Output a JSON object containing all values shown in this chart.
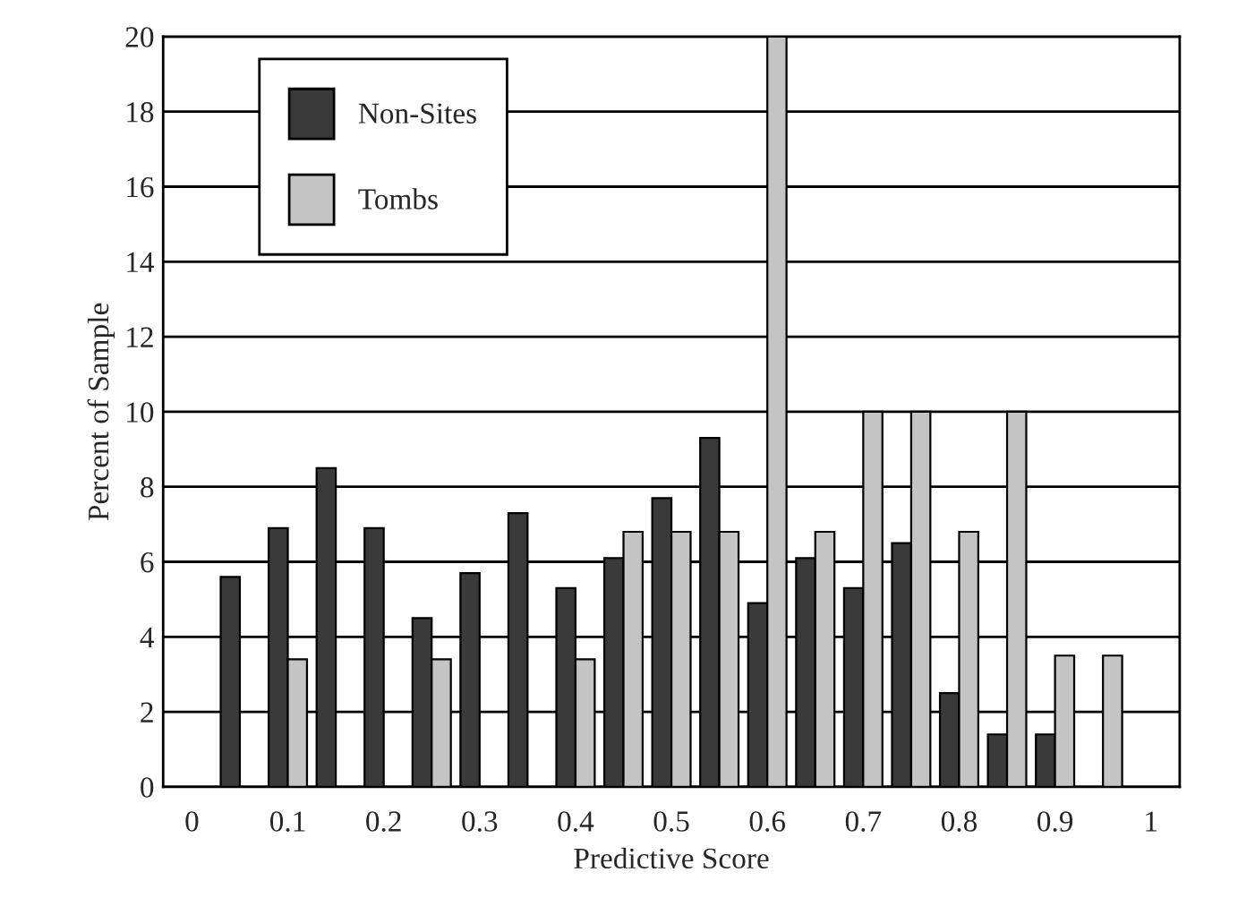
{
  "chart_data": {
    "type": "bar",
    "xlabel": "Predictive Score",
    "ylabel": "Percent of Sample",
    "x": [
      0.05,
      0.1,
      0.15,
      0.2,
      0.25,
      0.3,
      0.35,
      0.4,
      0.45,
      0.5,
      0.55,
      0.6,
      0.65,
      0.7,
      0.75,
      0.8,
      0.85,
      0.9,
      0.95
    ],
    "series": [
      {
        "name": "Non-Sites",
        "color": "#3a3a3a",
        "values": [
          5.6,
          6.9,
          8.5,
          6.9,
          4.5,
          5.7,
          7.3,
          5.3,
          6.1,
          7.7,
          9.3,
          4.9,
          6.1,
          5.3,
          6.5,
          2.5,
          1.4,
          1.4,
          null
        ]
      },
      {
        "name": "Tombs",
        "color": "#c4c4c4",
        "values": [
          null,
          3.4,
          null,
          null,
          3.4,
          null,
          null,
          3.4,
          6.8,
          6.8,
          6.8,
          20,
          6.8,
          10,
          10,
          6.8,
          10,
          3.5,
          3.5
        ]
      }
    ],
    "xlim": [
      -0.03,
      1.03
    ],
    "xticks": [
      0,
      0.1,
      0.2,
      0.3,
      0.4,
      0.5,
      0.6,
      0.7,
      0.8,
      0.9,
      1
    ],
    "ylim": [
      0,
      20
    ],
    "yticks": [
      0,
      2,
      4,
      6,
      8,
      10,
      12,
      14,
      16,
      18,
      20
    ],
    "grid": "y",
    "legend": "top left"
  }
}
